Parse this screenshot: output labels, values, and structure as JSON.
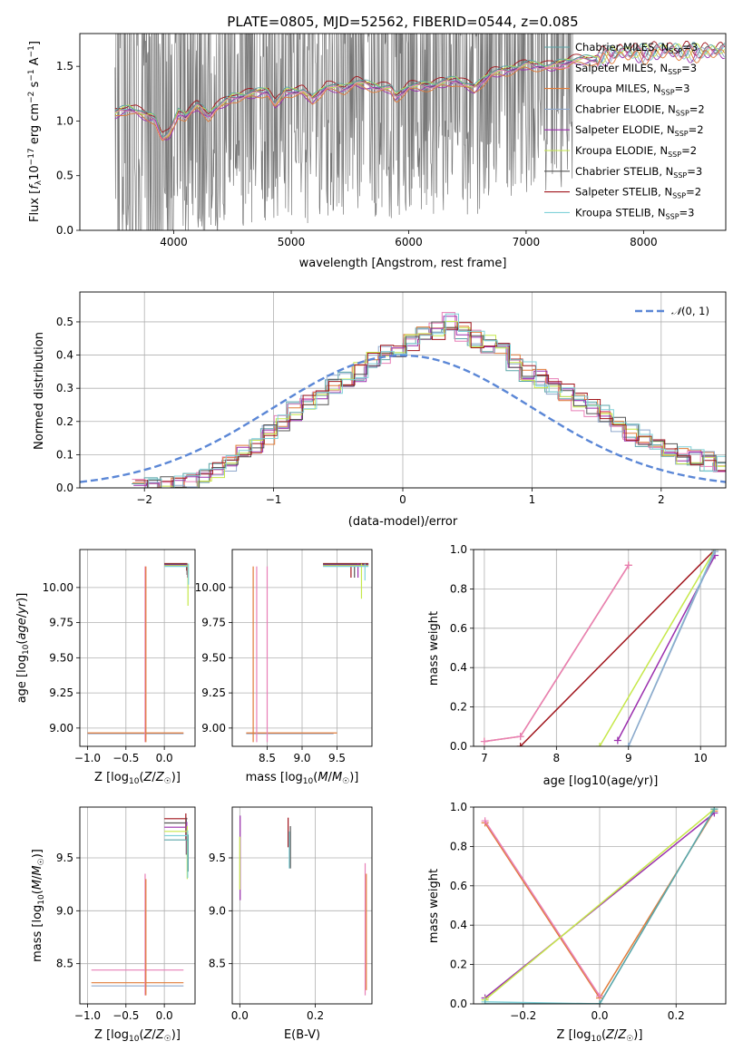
{
  "colors": {
    "chabrier_miles": "#5aa5a8",
    "salpeter_miles": "#e87fb7",
    "kroupa_miles": "#e07b39",
    "chabrier_elodie": "#8fa8cc",
    "salpeter_elodie": "#9b2fae",
    "kroupa_elodie": "#c6e84a",
    "chabrier_stelib": "#555555",
    "salpeter_stelib": "#a0151c",
    "kroupa_stelib": "#7fd1d8",
    "data": "#777777",
    "normal": "#5b87d6"
  },
  "chart_data": [
    {
      "id": "spectrum",
      "type": "line",
      "title": "PLATE=0805, MJD=52562, FIBERID=0544, z=0.085",
      "xlabel": "wavelength [Angstrom, rest frame]",
      "ylabel": "Flux [fλ 10^-17 erg cm^-2 s^-1 A^-1]",
      "xlim": [
        3200,
        8700
      ],
      "ylim": [
        0,
        1.8
      ],
      "xticks": [
        "4000",
        "5000",
        "6000",
        "7000",
        "8000"
      ],
      "yticks": [
        "0.0",
        "0.5",
        "1.0",
        "1.5"
      ],
      "grid": false,
      "legend_position": "right",
      "legend": [
        {
          "name": "Chabrier MILES",
          "nssp": "3",
          "color_key": "chabrier_miles"
        },
        {
          "name": "Salpeter MILES",
          "nssp": "3",
          "color_key": "salpeter_miles"
        },
        {
          "name": "Kroupa MILES",
          "nssp": "3",
          "color_key": "kroupa_miles"
        },
        {
          "name": "Chabrier ELODIE",
          "nssp": "2",
          "color_key": "chabrier_elodie"
        },
        {
          "name": "Salpeter ELODIE",
          "nssp": "2",
          "color_key": "salpeter_elodie"
        },
        {
          "name": "Kroupa ELODIE",
          "nssp": "2",
          "color_key": "kroupa_elodie"
        },
        {
          "name": "Chabrier STELIB",
          "nssp": "3",
          "color_key": "chabrier_stelib"
        },
        {
          "name": "Salpeter STELIB",
          "nssp": "2",
          "color_key": "salpeter_stelib"
        },
        {
          "name": "Kroupa STELIB",
          "nssp": "3",
          "color_key": "kroupa_stelib"
        }
      ],
      "model_continuum": [
        [
          3500,
          1.07
        ],
        [
          3560,
          1.1
        ],
        [
          3620,
          1.12
        ],
        [
          3680,
          1.1
        ],
        [
          3760,
          1.05
        ],
        [
          3840,
          1.03
        ],
        [
          3900,
          0.85
        ],
        [
          3960,
          0.88
        ],
        [
          4040,
          1.08
        ],
        [
          4100,
          1.05
        ],
        [
          4200,
          1.15
        ],
        [
          4300,
          1.05
        ],
        [
          4350,
          1.12
        ],
        [
          4500,
          1.22
        ],
        [
          4650,
          1.25
        ],
        [
          4800,
          1.28
        ],
        [
          4860,
          1.15
        ],
        [
          4950,
          1.27
        ],
        [
          5100,
          1.28
        ],
        [
          5180,
          1.2
        ],
        [
          5300,
          1.32
        ],
        [
          5450,
          1.3
        ],
        [
          5550,
          1.36
        ],
        [
          5700,
          1.32
        ],
        [
          5850,
          1.3
        ],
        [
          5890,
          1.22
        ],
        [
          6000,
          1.32
        ],
        [
          6200,
          1.33
        ],
        [
          6400,
          1.38
        ],
        [
          6560,
          1.3
        ],
        [
          6700,
          1.44
        ],
        [
          6850,
          1.47
        ],
        [
          7000,
          1.52
        ],
        [
          7200,
          1.5
        ],
        [
          7400,
          1.56
        ],
        [
          7600,
          1.57
        ],
        [
          7800,
          1.64
        ],
        [
          8000,
          1.62
        ],
        [
          8200,
          1.66
        ],
        [
          8400,
          1.63
        ],
        [
          8600,
          1.65
        ]
      ],
      "data_range": [
        3500,
        7400
      ]
    },
    {
      "id": "residuals",
      "type": "histogram",
      "xlabel": "(data-model)/error",
      "ylabel": "Normed distribution",
      "xlim": [
        -2.5,
        2.5
      ],
      "ylim": [
        0,
        0.59
      ],
      "xticks": [
        "−2",
        "−1",
        "0",
        "1",
        "2"
      ],
      "yticks": [
        "0.0",
        "0.1",
        "0.2",
        "0.3",
        "0.4",
        "0.5"
      ],
      "grid": true,
      "legend_position": "top-right",
      "legend": [
        {
          "name": "N(0,1)",
          "color_key": "normal",
          "style": "dashed"
        }
      ],
      "bin_width": 0.1,
      "bins_from": -2.1,
      "base_profile": [
        0.0,
        0.005,
        0.01,
        0.015,
        0.02,
        0.03,
        0.05,
        0.07,
        0.1,
        0.13,
        0.16,
        0.19,
        0.23,
        0.25,
        0.28,
        0.31,
        0.33,
        0.35,
        0.38,
        0.4,
        0.42,
        0.44,
        0.46,
        0.47,
        0.5,
        0.47,
        0.45,
        0.43,
        0.41,
        0.38,
        0.35,
        0.33,
        0.31,
        0.29,
        0.26,
        0.24,
        0.22,
        0.19,
        0.17,
        0.15,
        0.13,
        0.12,
        0.1,
        0.09,
        0.08,
        0.07,
        0.07,
        0.06,
        0.05,
        0.04
      ]
    },
    {
      "id": "age_vs_Z",
      "type": "error_bars",
      "xlabel": "Z [log10(Z/Z☉)]",
      "ylabel": "age  [log10(age/yr)]",
      "xlim": [
        -1.1,
        0.4
      ],
      "ylim": [
        8.87,
        10.27
      ],
      "xticks": [
        "−1.0",
        "−0.5",
        "0.0"
      ],
      "yticks": [
        "9.00",
        "9.25",
        "9.50",
        "9.75",
        "10.00"
      ],
      "grid": true
    },
    {
      "id": "age_vs_mass",
      "type": "error_bars",
      "xlabel": "mass [log10(M/M☉)]",
      "ylabel": "",
      "xlim": [
        8.0,
        10.0
      ],
      "ylim": [
        8.87,
        10.27
      ],
      "xticks": [
        "8.5",
        "9.0",
        "9.5"
      ],
      "yticks": [
        "9.00",
        "9.25",
        "9.50",
        "9.75",
        "10.00"
      ],
      "grid": true
    },
    {
      "id": "weight_vs_age",
      "type": "line",
      "xlabel": "age  [log10(age/yr)]",
      "ylabel": "mass weight",
      "xlim": [
        6.85,
        10.35
      ],
      "ylim": [
        0,
        1.0
      ],
      "xticks": [
        "7",
        "8",
        "9",
        "10"
      ],
      "yticks": [
        "0.0",
        "0.2",
        "0.4",
        "0.6",
        "0.8",
        "1.0"
      ],
      "grid": true,
      "series": [
        {
          "color_key": "kroupa_miles",
          "points": [
            [
              7.0,
              0.025
            ],
            [
              7.5,
              0.05
            ],
            [
              9.0,
              0.92
            ]
          ]
        },
        {
          "color_key": "salpeter_miles",
          "points": [
            [
              7.0,
              0.025
            ],
            [
              7.5,
              0.05
            ],
            [
              9.0,
              0.92
            ]
          ]
        },
        {
          "color_key": "salpeter_stelib",
          "points": [
            [
              7.5,
              0.0
            ],
            [
              10.2,
              1.0
            ]
          ]
        },
        {
          "color_key": "kroupa_elodie",
          "points": [
            [
              8.6,
              0.0
            ],
            [
              10.2,
              1.0
            ]
          ]
        },
        {
          "color_key": "salpeter_elodie",
          "points": [
            [
              8.85,
              0.03
            ],
            [
              10.2,
              0.97
            ]
          ]
        },
        {
          "color_key": "kroupa_stelib",
          "points": [
            [
              9.0,
              0.0
            ],
            [
              10.2,
              1.0
            ]
          ]
        },
        {
          "color_key": "chabrier_elodie",
          "points": [
            [
              9.0,
              0.0
            ],
            [
              10.2,
              0.99
            ]
          ]
        }
      ]
    },
    {
      "id": "mass_vs_Z",
      "type": "error_bars",
      "xlabel": "Z [log10(Z/Z☉)]",
      "ylabel": "mass [log10(M/M☉)]",
      "xlim": [
        -1.1,
        0.4
      ],
      "ylim": [
        8.12,
        9.98
      ],
      "xticks": [
        "−1.0",
        "−0.5",
        "0.0"
      ],
      "yticks": [
        "8.5",
        "9.0",
        "9.5"
      ],
      "grid": true
    },
    {
      "id": "mass_vs_EBV",
      "type": "error_bars",
      "xlabel": "E(B-V)",
      "ylabel": "",
      "xlim": [
        -0.02,
        0.35
      ],
      "ylim": [
        8.12,
        9.98
      ],
      "xticks": [
        "0.0",
        "0.2"
      ],
      "yticks": [
        "8.5",
        "9.0",
        "9.5"
      ],
      "grid": true
    },
    {
      "id": "weight_vs_Z",
      "type": "line",
      "xlabel": "Z [log10(Z/Z☉)]",
      "ylabel": "mass weight",
      "xlim": [
        -0.33,
        0.33
      ],
      "ylim": [
        0,
        1.0
      ],
      "xticks": [
        "−0.2",
        "0.0",
        "0.2"
      ],
      "yticks": [
        "0.0",
        "0.2",
        "0.4",
        "0.6",
        "0.8",
        "1.0"
      ],
      "grid": true,
      "series": [
        {
          "color_key": "kroupa_miles",
          "points": [
            [
              -0.3,
              0.92
            ],
            [
              0.0,
              0.03
            ],
            [
              0.3,
              0.98
            ]
          ]
        },
        {
          "color_key": "salpeter_miles",
          "points": [
            [
              -0.3,
              0.93
            ],
            [
              0.0,
              0.04
            ]
          ]
        },
        {
          "color_key": "salpeter_elodie",
          "points": [
            [
              -0.3,
              0.03
            ],
            [
              0.3,
              0.97
            ]
          ]
        },
        {
          "color_key": "kroupa_elodie",
          "points": [
            [
              -0.3,
              0.02
            ],
            [
              0.3,
              0.99
            ]
          ]
        },
        {
          "color_key": "kroupa_stelib",
          "points": [
            [
              -0.3,
              0.01
            ],
            [
              0.0,
              0.0
            ],
            [
              0.3,
              0.99
            ]
          ]
        },
        {
          "color_key": "chabrier_miles",
          "points": [
            [
              -0.3,
              0.0
            ],
            [
              0.0,
              0.0
            ],
            [
              0.3,
              0.99
            ]
          ]
        }
      ]
    }
  ]
}
